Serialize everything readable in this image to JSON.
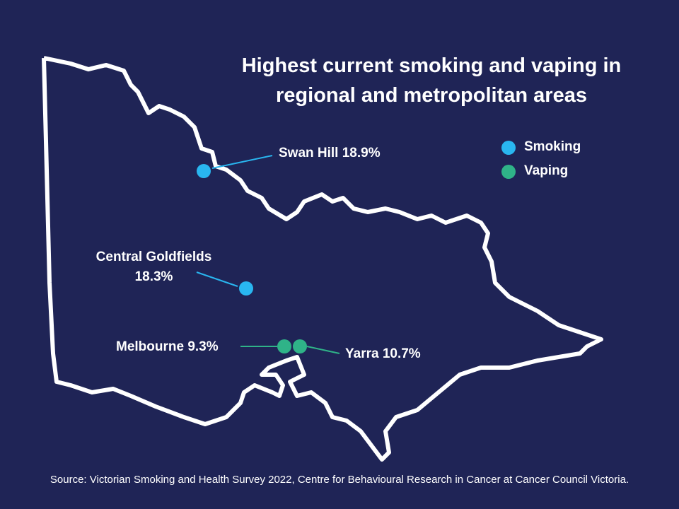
{
  "title": "Highest current smoking and vaping in regional and metropolitan areas",
  "legend": [
    {
      "label": "Smoking",
      "color": "#29b6f0"
    },
    {
      "label": "Vaping",
      "color": "#2fb388"
    }
  ],
  "markers": [
    {
      "label": "Swan Hill 18.9%",
      "legend": 0
    },
    {
      "label": "Central Goldfields 18.3%",
      "legend": 0
    },
    {
      "label": "Melbourne 9.3%",
      "legend": 1
    },
    {
      "label": "Yarra 10.7%",
      "legend": 1
    }
  ],
  "source": "Source: Victorian Smoking and Health Survey 2022, Centre for Behavioural Research in Cancer at Cancer Council Victoria."
}
